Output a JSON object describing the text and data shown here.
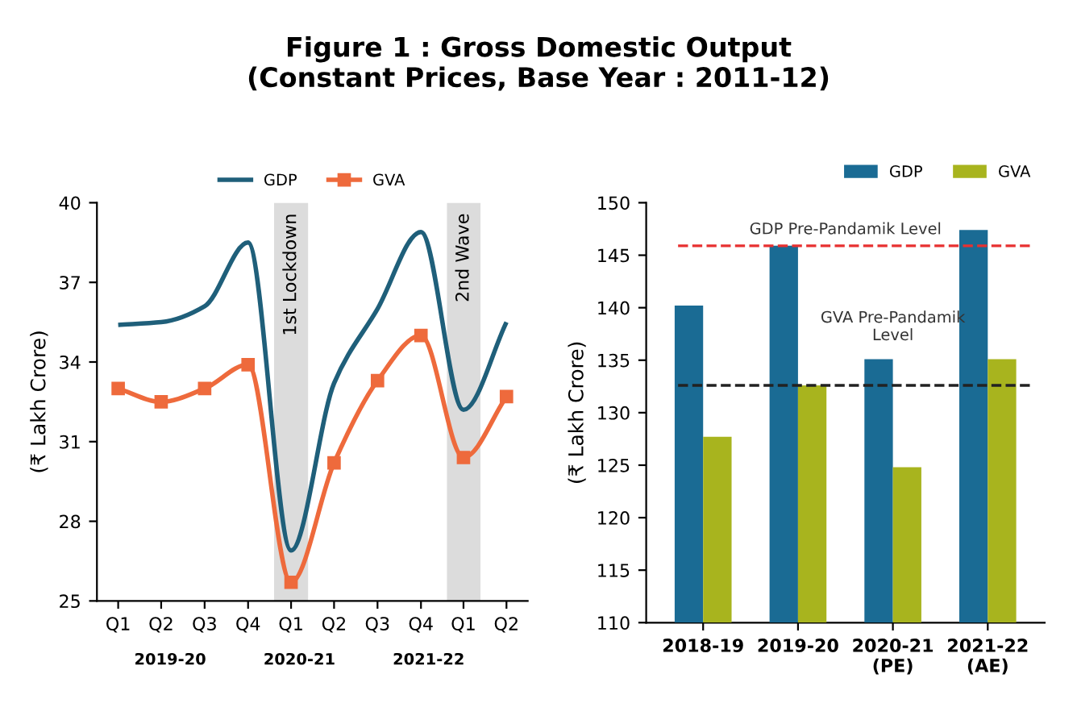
{
  "chart_data": [
    {
      "type": "line",
      "title": "Figure 1 : Gross Domestic Output\n(Constant Prices, Base Year : 2011-12)",
      "ylabel": "(₹ Lakh Crore)",
      "x": [
        "2019-04",
        "2019-07",
        "2019-10",
        "2020-01",
        "2020-04",
        "2020-07",
        "2020-10",
        "2021-01",
        "2021-04",
        "2021-07"
      ],
      "xlim": [
        "2019-02-15",
        "2021-08-15"
      ],
      "xticks": [
        {
          "value": "2019-04",
          "label": "Q1"
        },
        {
          "value": "2019-07",
          "label": "Q2"
        },
        {
          "value": "2019-10",
          "label": "Q3"
        },
        {
          "value": "2020-01",
          "label": "Q4"
        },
        {
          "value": "2020-04",
          "label": "Q1"
        },
        {
          "value": "2020-07",
          "label": "Q2"
        },
        {
          "value": "2020-10",
          "label": "Q3"
        },
        {
          "value": "2021-01",
          "label": "Q4"
        },
        {
          "value": "2021-04",
          "label": "Q1"
        },
        {
          "value": "2021-07",
          "label": "Q2"
        }
      ],
      "ylim": [
        25,
        40
      ],
      "yticks": [
        25,
        28,
        31,
        34,
        37,
        40
      ],
      "series": [
        {
          "name": "GDP",
          "color": "#1f5f7a",
          "marker": "none",
          "values": [
            35.4,
            35.5,
            36.1,
            38.5,
            26.9,
            33.2,
            36.0,
            38.9,
            32.2,
            35.5
          ]
        },
        {
          "name": "GVA",
          "color": "#ee6a3c",
          "marker": "square",
          "values": [
            33.0,
            32.5,
            33.0,
            33.9,
            25.7,
            30.2,
            33.3,
            35.0,
            30.4,
            32.7
          ]
        }
      ],
      "bands": [
        {
          "axis": "x",
          "from": "2020-02-25",
          "to": "2020-05-07",
          "label": "1st Lockdown",
          "color": "#dcdcdc"
        },
        {
          "axis": "x",
          "from": "2021-02-25",
          "to": "2021-05-07",
          "label": "2nd Wave",
          "color": "#dcdcdc"
        }
      ],
      "annotations": [
        "2019-20",
        "2020-21",
        "2021-22"
      ],
      "grid": false,
      "legend": "top"
    },
    {
      "type": "bar",
      "ylabel": "(₹ Lakh Crore)",
      "categories": [
        "2018-19",
        "2019-20",
        "2020-21\n(PE)",
        "2021-22\n(AE)"
      ],
      "ylim": [
        110,
        150
      ],
      "yticks": [
        110,
        115,
        120,
        125,
        130,
        135,
        140,
        145,
        150
      ],
      "series": [
        {
          "name": "GDP",
          "color": "#1a6b94",
          "values": [
            140.2,
            145.9,
            135.1,
            147.4
          ]
        },
        {
          "name": "GVA",
          "color": "#a8b41e",
          "values": [
            127.7,
            132.6,
            124.8,
            135.1
          ]
        }
      ],
      "ref_lines": [
        {
          "axis": "y",
          "value": 145.9,
          "label": "GDP Pre-Pandamik Level",
          "color": "#e83030",
          "line_style": "dashed"
        },
        {
          "axis": "y",
          "value": 132.6,
          "label": "GVA Pre-Pandamik\nLevel",
          "color": "#222222",
          "line_style": "dashed"
        }
      ],
      "grid": false,
      "legend": "top right"
    }
  ]
}
